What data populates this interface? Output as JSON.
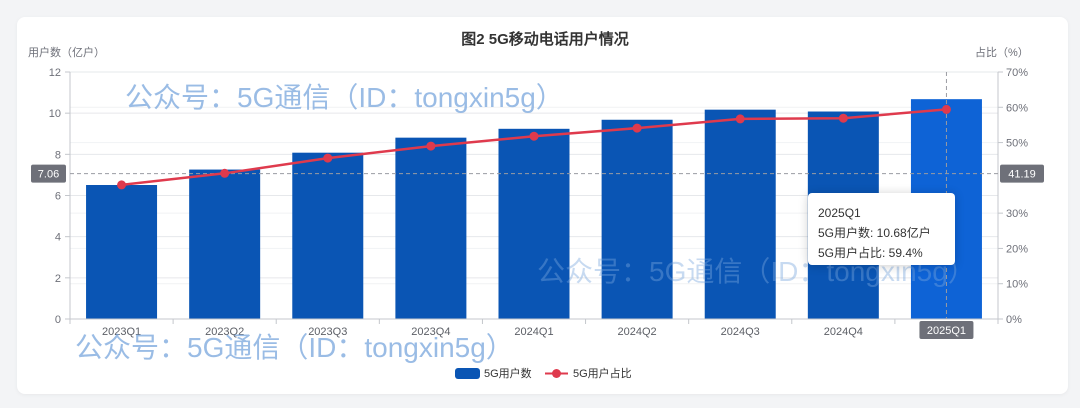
{
  "page": {
    "watermark": "公众号：5G通信（ID：tongxin5g）"
  },
  "chart_data": {
    "type": "bar",
    "title": "图2 5G移动电话用户情况",
    "ylabel": "用户数（亿户）",
    "y2label": "占比（%）",
    "categories": [
      "2023Q1",
      "2023Q2",
      "2023Q3",
      "2023Q4",
      "2024Q1",
      "2024Q2",
      "2024Q3",
      "2024Q4",
      "2025Q1"
    ],
    "series": [
      {
        "name": "5G用户数",
        "type": "bar",
        "y_axis": "left",
        "color": "#0a55b4",
        "values": [
          6.51,
          7.26,
          8.08,
          8.81,
          9.24,
          9.68,
          10.17,
          10.08,
          10.68
        ]
      },
      {
        "name": "5G用户占比",
        "type": "line",
        "y_axis": "right",
        "color": "#df3a4d",
        "values": [
          38.0,
          41.3,
          45.6,
          49.0,
          51.8,
          54.1,
          56.7,
          56.9,
          59.4
        ]
      }
    ],
    "ylim": [
      0,
      12
    ],
    "y2lim": [
      0,
      70
    ],
    "yticks": [
      "0",
      "2",
      "4",
      "6",
      "8",
      "10",
      "12"
    ],
    "y2ticks": [
      "0%",
      "10%",
      "20%",
      "30%",
      "50%",
      "60%",
      "70%"
    ],
    "grid": true,
    "legend": "bottom-center",
    "highlight_color": "#0e63d6",
    "axis_pointer": {
      "category": "2025Q1",
      "left_value": "7.06",
      "right_value": "41.19"
    },
    "tooltip": {
      "title": "2025Q1",
      "lines": [
        "5G用户数: 10.68亿户",
        "5G用户占比: 59.4%"
      ]
    }
  }
}
